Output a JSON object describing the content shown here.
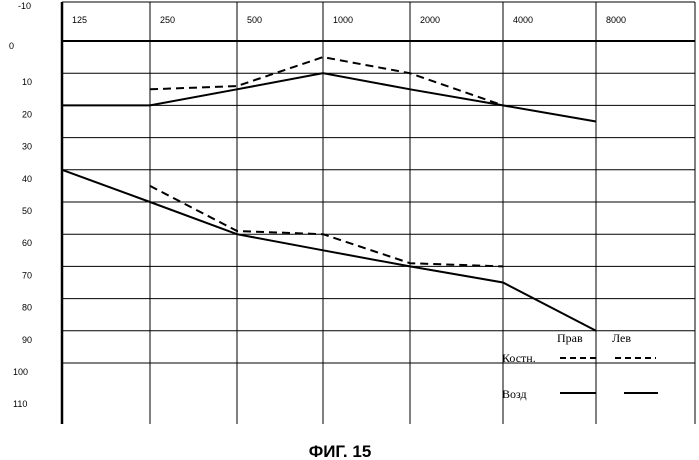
{
  "chart_data": {
    "type": "line",
    "title": "",
    "xlabel": "",
    "ylabel": "",
    "x_categories": [
      "125",
      "250",
      "500",
      "1000",
      "2000",
      "4000",
      "8000"
    ],
    "y_ticks": [
      "-10",
      "0",
      "10",
      "20",
      "30",
      "40",
      "50",
      "60",
      "70",
      "80",
      "90",
      "100",
      "110"
    ],
    "ylim": [
      -10,
      110
    ],
    "y_inverted": true,
    "grid": true,
    "series": [
      {
        "style": "solid",
        "points": [
          [
            "125",
            20
          ],
          [
            "250",
            20
          ],
          [
            "500",
            15
          ],
          [
            "1000",
            10
          ],
          [
            "2000",
            15
          ],
          [
            "4000",
            20
          ],
          [
            "8000",
            25
          ]
        ]
      },
      {
        "style": "dashed",
        "points": [
          [
            "250",
            15
          ],
          [
            "500",
            14
          ],
          [
            "1000",
            5
          ],
          [
            "2000",
            10
          ],
          [
            "4000",
            20
          ]
        ]
      },
      {
        "style": "solid",
        "points": [
          [
            "125",
            40
          ],
          [
            "250",
            50
          ],
          [
            "500",
            60
          ],
          [
            "1000",
            65
          ],
          [
            "2000",
            70
          ],
          [
            "4000",
            75
          ],
          [
            "8000",
            90
          ]
        ]
      },
      {
        "style": "dashed",
        "points": [
          [
            "250",
            45
          ],
          [
            "500",
            59
          ],
          [
            "1000",
            60
          ],
          [
            "2000",
            69
          ],
          [
            "4000",
            70
          ]
        ]
      }
    ],
    "legend": {
      "col_right": "Прав",
      "col_left": "Лев",
      "bone_label": "Костн.",
      "air_label": "Возд"
    }
  },
  "caption": "ФИГ. 15"
}
